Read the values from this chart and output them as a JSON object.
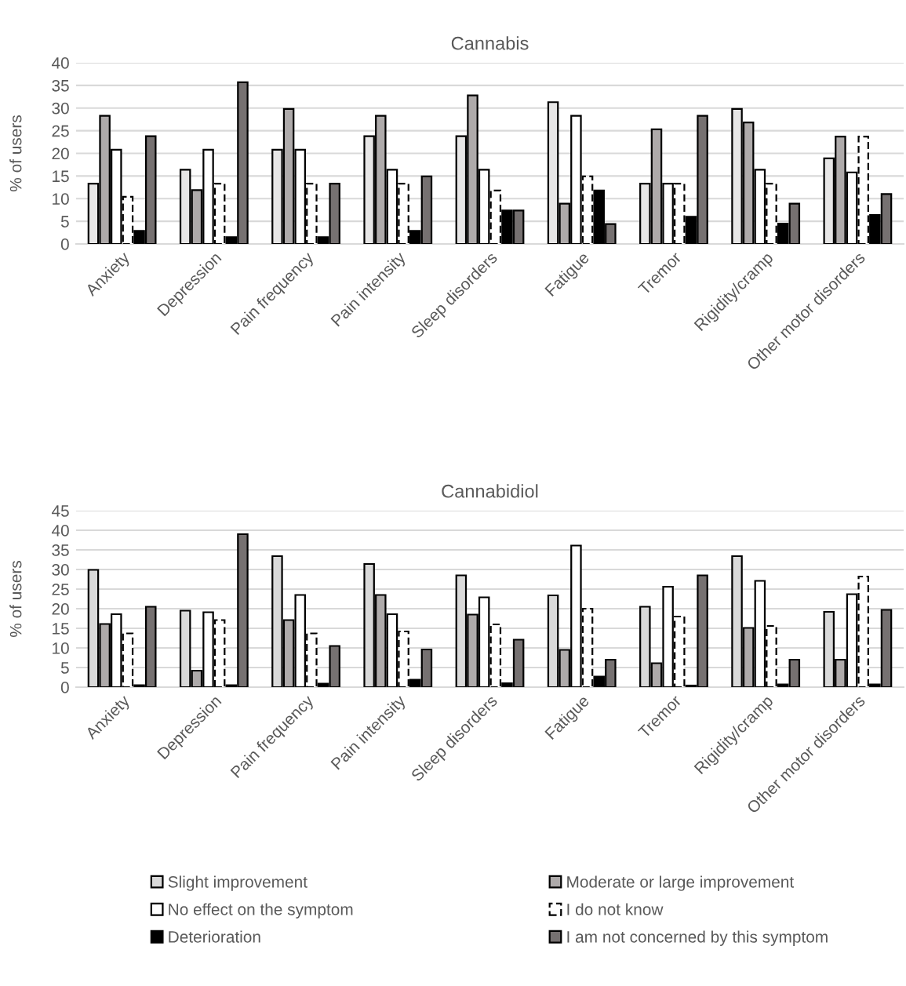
{
  "chart_data": [
    {
      "type": "bar",
      "title": "Cannabis",
      "ylabel": "% of users",
      "categories": [
        "Anxiety",
        "Depression",
        "Pain frequency",
        "Pain intensity",
        "Sleep disorders",
        "Fatigue",
        "Tremor",
        "Rigidity/cramp",
        "Other motor disorders"
      ],
      "ylim": [
        0,
        40
      ],
      "yticks": [
        0,
        5,
        10,
        15,
        20,
        25,
        30,
        35,
        40
      ],
      "grid": "y",
      "legend": false,
      "series": [
        {
          "color": "#e7e6e6",
          "values": [
            13.3,
            16.4,
            20.8,
            23.8,
            23.8,
            31.3,
            13.3,
            29.8,
            18.9
          ]
        },
        {
          "color": "#aeaaaa",
          "values": [
            28.3,
            11.9,
            29.8,
            28.3,
            32.8,
            8.9,
            25.3,
            26.8,
            23.7
          ]
        },
        {
          "color": "#ffffff",
          "values": [
            20.8,
            20.8,
            20.8,
            16.4,
            16.4,
            28.3,
            13.3,
            16.4,
            15.8
          ]
        },
        {
          "color": "#ffffff",
          "line_style": "dashed",
          "values": [
            10.4,
            13.3,
            13.3,
            13.3,
            11.8,
            14.9,
            13.3,
            13.3,
            23.7
          ]
        },
        {
          "color": "#000000",
          "values": [
            2.9,
            1.5,
            1.5,
            2.9,
            7.4,
            11.8,
            6.0,
            4.5,
            6.4
          ]
        },
        {
          "color": "#767171",
          "values": [
            23.8,
            35.7,
            13.3,
            14.9,
            7.4,
            4.4,
            28.3,
            8.9,
            11.0
          ]
        }
      ]
    },
    {
      "type": "bar",
      "title": "Cannabidiol",
      "ylabel": "% of users",
      "categories": [
        "Anxiety",
        "Depression",
        "Pain frequency",
        "Pain intensity",
        "Sleep disorders",
        "Fatigue",
        "Tremor",
        "Rigidity/cramp",
        "Other motor disorders"
      ],
      "ylim": [
        0,
        45
      ],
      "yticks": [
        0,
        5,
        10,
        15,
        20,
        25,
        30,
        35,
        40,
        45
      ],
      "grid": "y",
      "legend": "bottom",
      "series": [
        {
          "name": "Slight improvement",
          "color": "#d9d9d9",
          "values": [
            29.9,
            19.5,
            33.4,
            31.4,
            28.5,
            23.4,
            20.5,
            33.4,
            19.2
          ]
        },
        {
          "name": "Moderate or large improvement",
          "color": "#aeaaaa",
          "values": [
            16.1,
            4.2,
            17.1,
            23.5,
            18.5,
            9.5,
            6.1,
            15.1,
            7.0
          ]
        },
        {
          "name": "No effect on the symptom",
          "color": "#ffffff",
          "values": [
            18.6,
            19.1,
            23.5,
            18.6,
            22.9,
            36.1,
            25.6,
            27.1,
            23.7
          ]
        },
        {
          "name": "I do not know",
          "color": "#ffffff",
          "line_style": "dashed",
          "values": [
            13.7,
            17.1,
            13.7,
            14.2,
            16.0,
            20.0,
            18.0,
            15.6,
            28.2
          ]
        },
        {
          "name": "Deterioration",
          "color": "#000000",
          "values": [
            0.5,
            0.5,
            0.9,
            1.9,
            1.0,
            2.7,
            0.4,
            0.7,
            0.7
          ]
        },
        {
          "name": "I am not concerned by this symptom",
          "color": "#767171",
          "values": [
            20.5,
            39.0,
            10.5,
            9.6,
            12.1,
            7.0,
            28.5,
            7.0,
            19.7
          ]
        }
      ]
    }
  ]
}
